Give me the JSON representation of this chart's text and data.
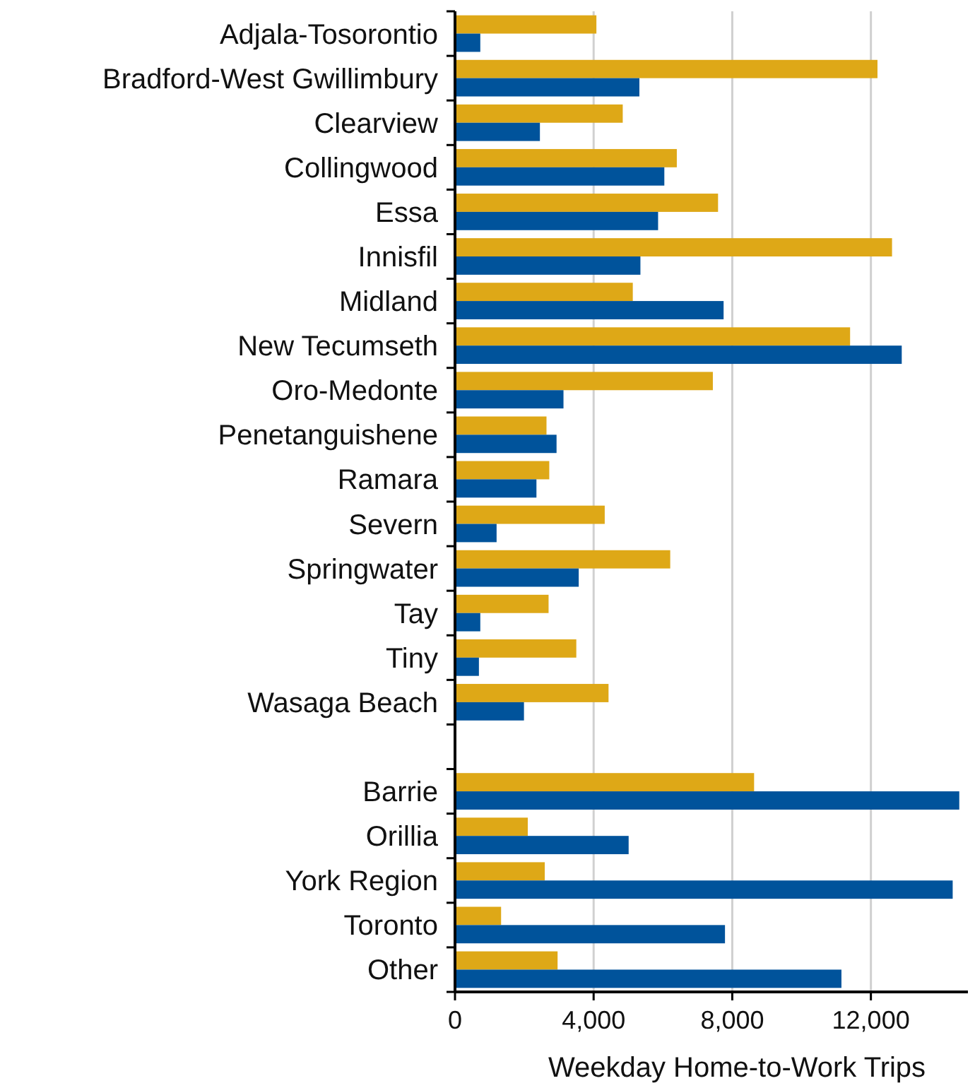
{
  "chart_data": {
    "type": "bar",
    "orientation": "horizontal",
    "xlabel": "Weekday Home-to-Work Trips",
    "categories": [
      "Adjala-Tosorontio",
      "Bradford-West Gwillimbury",
      "Clearview",
      "Collingwood",
      "Essa",
      "Innisfil",
      "Midland",
      "New Tecumseth",
      "Oro-Medonte",
      "Penetanguishene",
      "Ramara",
      "Severn",
      "Springwater",
      "Tay",
      "Tiny",
      "Wasaga Beach",
      null,
      "Barrie",
      "Orillia",
      "York Region",
      "Toronto",
      "Other"
    ],
    "series": [
      {
        "color": "#dea817",
        "values": [
          4080,
          12190,
          4840,
          6400,
          7590,
          12610,
          5130,
          11400,
          7440,
          2640,
          2720,
          4320,
          6210,
          2700,
          3500,
          4430,
          null,
          8630,
          2100,
          2590,
          1330,
          2960
        ]
      },
      {
        "color": "#00539b",
        "values": [
          730,
          5320,
          2450,
          6040,
          5860,
          5350,
          7750,
          12890,
          3130,
          2930,
          2350,
          1200,
          3570,
          730,
          690,
          1990,
          null,
          14550,
          5010,
          14360,
          7790,
          11150
        ]
      }
    ],
    "xlim": [
      0,
      14800
    ],
    "xticks": [
      0,
      {
        "value": 4000,
        "label": "4,000"
      },
      {
        "value": 8000,
        "label": "8,000"
      },
      {
        "value": 12000,
        "label": "12,000"
      }
    ],
    "grid": "x"
  }
}
